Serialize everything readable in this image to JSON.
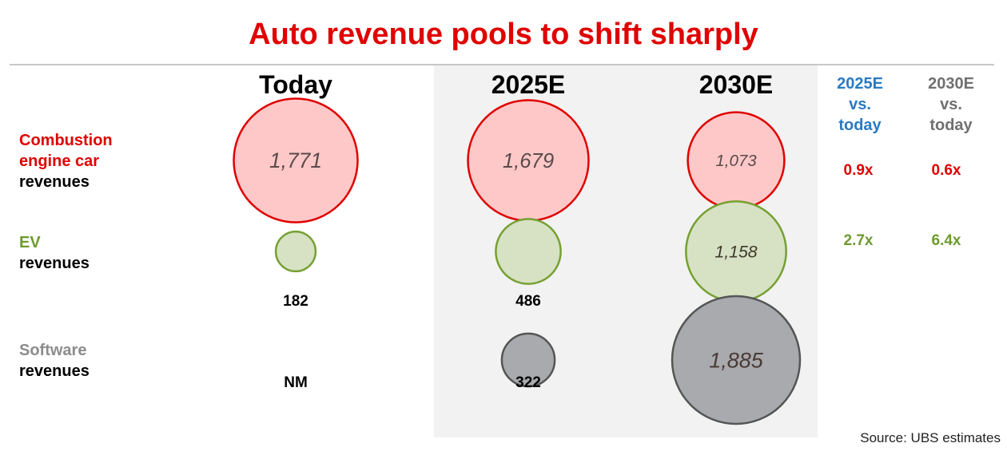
{
  "title": "Auto revenue pools to shift sharply",
  "columns": [
    "Today",
    "2025E",
    "2030E"
  ],
  "ratio_headers": {
    "r2025": [
      "2025E",
      "vs.",
      "today"
    ],
    "r2030": [
      "2030E",
      "vs.",
      "today"
    ]
  },
  "row_labels": {
    "combustion": [
      "Combustion",
      "engine car",
      "revenues"
    ],
    "ev": [
      "EV",
      "revenues"
    ],
    "software": [
      "Software",
      "revenues"
    ]
  },
  "ratios": {
    "combustion": {
      "r2025": "0.9x",
      "r2030": "0.6x"
    },
    "ev": {
      "r2025": "2.7x",
      "r2030": "6.4x"
    }
  },
  "source": "Source:   UBS estimates",
  "colors": {
    "title": "#e00000",
    "combustion_stroke": "#e00000",
    "combustion_fill": "#ffc8c8",
    "ev_stroke": "#76a032",
    "ev_fill": "#d7e1c3",
    "ev_text": "#6e9b2e",
    "software_stroke": "#555555",
    "software_fill": "#a8aaad",
    "software_text": "#8c8c8c",
    "ratio_2025_header": "#2a7ac2",
    "ratio_2030_header": "#707070"
  },
  "chart_data": {
    "type": "bubble",
    "title": "Auto revenue pools to shift sharply",
    "categories": [
      "Today",
      "2025E",
      "2030E"
    ],
    "series": [
      {
        "name": "Combustion engine car revenues",
        "values": [
          1771,
          1679,
          1073
        ],
        "labels": [
          "1,771",
          "1,679",
          "1,073"
        ],
        "label_position": [
          "inside",
          "inside",
          "inside"
        ]
      },
      {
        "name": "EV revenues",
        "values": [
          182,
          486,
          1158
        ],
        "labels": [
          "182",
          "486",
          "1,158"
        ],
        "label_position": [
          "below",
          "below",
          "inside"
        ]
      },
      {
        "name": "Software revenues",
        "values": [
          null,
          322,
          1885
        ],
        "labels": [
          "NM",
          "322",
          "1,885"
        ],
        "label_position": [
          "below",
          "below",
          "inside"
        ]
      }
    ]
  }
}
